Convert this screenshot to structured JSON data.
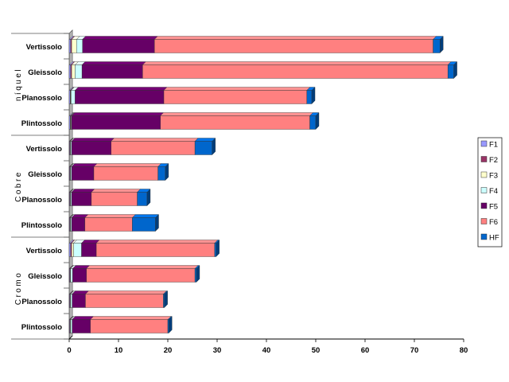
{
  "chart_data": {
    "type": "bar",
    "orientation": "horizontal",
    "stacked": true,
    "groups": [
      {
        "label": "níquel",
        "categories": [
          "Vertissolo",
          "Gleissolo",
          "Planossolo",
          "Plintossolo"
        ]
      },
      {
        "label": "Cobre",
        "categories": [
          "Vertissolo",
          "Gleissolo",
          "Planossolo",
          "Plintossolo"
        ]
      },
      {
        "label": "Cromo",
        "categories": [
          "Vertissolo",
          "Gleissolo",
          "Planossolo",
          "Plintossolo"
        ]
      }
    ],
    "series": [
      {
        "name": "F1",
        "color": "#9999ff",
        "values": [
          0.3,
          0.3,
          0.2,
          0.2,
          0.1,
          0.1,
          0.1,
          0.1,
          0.3,
          0.1,
          0.1,
          0.1
        ]
      },
      {
        "name": "F2",
        "color": "#993366",
        "values": [
          0.2,
          0.2,
          0.1,
          0.1,
          0.1,
          0.1,
          0.1,
          0.1,
          0.2,
          0.1,
          0.1,
          0.1
        ]
      },
      {
        "name": "F3",
        "color": "#ffffcc",
        "values": [
          1.0,
          0.7,
          0.1,
          0.1,
          0.1,
          0.1,
          0.1,
          0.1,
          0.4,
          0.1,
          0.1,
          0.1
        ]
      },
      {
        "name": "F4",
        "color": "#ccffff",
        "values": [
          1.2,
          1.4,
          0.8,
          0.1,
          0.2,
          0.2,
          0.2,
          0.2,
          1.6,
          0.4,
          0.3,
          0.3
        ]
      },
      {
        "name": "F5",
        "color": "#660066",
        "values": [
          14.6,
          12.3,
          18.0,
          18.0,
          8.0,
          4.5,
          4.0,
          2.7,
          3.0,
          2.8,
          2.7,
          3.7
        ]
      },
      {
        "name": "F6",
        "color": "#ff8080",
        "values": [
          56.5,
          61.9,
          29.0,
          30.3,
          17.0,
          13.0,
          9.3,
          9.6,
          24.0,
          22.0,
          15.8,
          15.7
        ]
      },
      {
        "name": "HF",
        "color": "#0066cc",
        "values": [
          1.4,
          1.2,
          1.0,
          1.2,
          3.5,
          1.5,
          2.0,
          4.7,
          0.3,
          0.3,
          0.2,
          0.2
        ]
      }
    ],
    "xlim": [
      0,
      80
    ],
    "xticks": [
      0,
      10,
      20,
      30,
      40,
      50,
      60,
      70,
      80
    ],
    "legend_position": "right",
    "grid": false
  }
}
